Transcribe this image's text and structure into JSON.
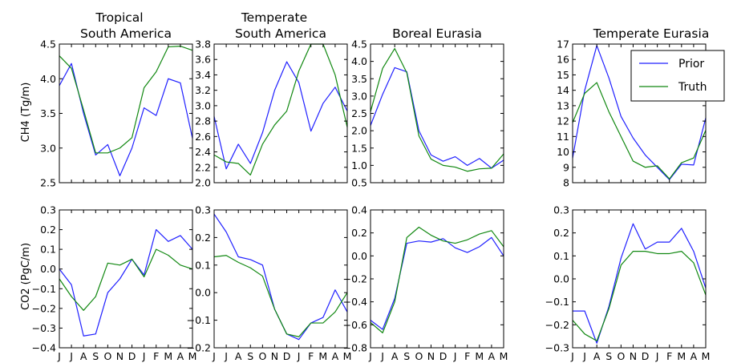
{
  "colors": {
    "prior": "#2020ff",
    "truth": "#118811"
  },
  "row_labels": [
    "CH4 (Tg/m)",
    "CO2 (PgC/m)"
  ],
  "legend": {
    "entries": [
      "Prior",
      "Truth"
    ],
    "placement": "upper-right of Temperate Eurasia CH4 panel"
  },
  "months": [
    "J",
    "J",
    "A",
    "S",
    "O",
    "N",
    "D",
    "J",
    "F",
    "M",
    "A",
    "M"
  ],
  "chart_data": [
    {
      "type": "line",
      "row": 0,
      "col": 0,
      "title": [
        "Tropical",
        "South America"
      ],
      "ylim": [
        2.5,
        4.5
      ],
      "yticks": [
        2.5,
        3.0,
        3.5,
        4.0,
        4.5
      ],
      "ytick_labels": [
        "2.5",
        "3.0",
        "3.5",
        "4.0",
        "4.5"
      ],
      "series": [
        {
          "name": "Prior",
          "values": [
            3.9,
            4.22,
            3.5,
            2.9,
            3.05,
            2.6,
            3.0,
            3.58,
            3.47,
            4.0,
            3.94,
            3.14
          ]
        },
        {
          "name": "Truth",
          "values": [
            4.33,
            4.15,
            3.55,
            2.93,
            2.93,
            3.0,
            3.15,
            3.87,
            4.1,
            4.46,
            4.47,
            4.41
          ]
        }
      ]
    },
    {
      "type": "line",
      "row": 0,
      "col": 1,
      "title": [
        "Temperate",
        "South America"
      ],
      "ylim": [
        2.0,
        3.8
      ],
      "yticks": [
        2.0,
        2.2,
        2.4,
        2.6,
        2.8,
        3.0,
        3.2,
        3.4,
        3.6,
        3.8
      ],
      "ytick_labels": [
        "2.0",
        "2.2",
        "2.4",
        "2.6",
        "2.8",
        "3.0",
        "3.2",
        "3.4",
        "3.6",
        "3.8"
      ],
      "series": [
        {
          "name": "Prior",
          "values": [
            2.86,
            2.18,
            2.5,
            2.25,
            2.65,
            3.2,
            3.57,
            3.3,
            2.67,
            3.03,
            3.24,
            2.93
          ]
        },
        {
          "name": "Truth",
          "values": [
            2.36,
            2.27,
            2.25,
            2.1,
            2.5,
            2.75,
            2.93,
            3.45,
            3.8,
            3.8,
            3.4,
            2.72
          ]
        }
      ]
    },
    {
      "type": "line",
      "row": 0,
      "col": 2,
      "title": [
        "Boreal Eurasia"
      ],
      "ylim": [
        0.5,
        4.5
      ],
      "yticks": [
        0.5,
        1.0,
        1.5,
        2.0,
        2.5,
        3.0,
        3.5,
        4.0,
        4.5
      ],
      "ytick_labels": [
        "0.5",
        "1.0",
        "1.5",
        "2.0",
        "2.5",
        "3.0",
        "3.5",
        "4.0",
        "4.5"
      ],
      "series": [
        {
          "name": "Prior",
          "values": [
            2.15,
            3.05,
            3.82,
            3.7,
            2.0,
            1.3,
            1.12,
            1.25,
            1.0,
            1.2,
            0.92,
            1.15
          ]
        },
        {
          "name": "Truth",
          "values": [
            2.55,
            3.8,
            4.37,
            3.67,
            1.85,
            1.18,
            1.0,
            0.95,
            0.83,
            0.9,
            0.92,
            1.33
          ]
        }
      ]
    },
    {
      "type": "line",
      "row": 0,
      "col": 3,
      "title": [
        "Temperate Eurasia"
      ],
      "ylim": [
        8,
        17
      ],
      "yticks": [
        8,
        9,
        10,
        11,
        12,
        13,
        14,
        15,
        16,
        17
      ],
      "ytick_labels": [
        "8",
        "9",
        "10",
        "11",
        "12",
        "13",
        "14",
        "15",
        "16",
        "17"
      ],
      "series": [
        {
          "name": "Prior",
          "values": [
            9.6,
            14.0,
            16.9,
            14.8,
            12.3,
            10.9,
            9.8,
            9.0,
            8.2,
            9.2,
            9.15,
            12.2
          ]
        },
        {
          "name": "Truth",
          "values": [
            11.9,
            13.8,
            14.5,
            12.6,
            11.0,
            9.4,
            9.0,
            9.1,
            8.25,
            9.3,
            9.6,
            11.4
          ]
        }
      ]
    },
    {
      "type": "line",
      "row": 1,
      "col": 0,
      "title": [],
      "ylim": [
        -0.4,
        0.3
      ],
      "yticks": [
        -0.4,
        -0.3,
        -0.2,
        -0.1,
        0.0,
        0.1,
        0.2,
        0.3
      ],
      "ytick_labels": [
        "−0.4",
        "−0.3",
        "−0.2",
        "−0.1",
        "0.0",
        "0.1",
        "0.2",
        "0.3"
      ],
      "series": [
        {
          "name": "Prior",
          "values": [
            0.0,
            -0.08,
            -0.34,
            -0.33,
            -0.12,
            -0.05,
            0.05,
            -0.03,
            0.2,
            0.14,
            0.17,
            0.1
          ]
        },
        {
          "name": "Truth",
          "values": [
            -0.05,
            -0.14,
            -0.21,
            -0.14,
            0.03,
            0.02,
            0.05,
            -0.04,
            0.1,
            0.07,
            0.02,
            0.0
          ]
        }
      ]
    },
    {
      "type": "line",
      "row": 1,
      "col": 1,
      "title": [],
      "ylim": [
        -0.2,
        0.3
      ],
      "yticks": [
        -0.2,
        -0.1,
        0.0,
        0.1,
        0.2,
        0.3
      ],
      "ytick_labels": [
        "−0.2",
        "−0.1",
        "0.0",
        "0.1",
        "0.2",
        "0.3"
      ],
      "series": [
        {
          "name": "Prior",
          "values": [
            0.285,
            0.22,
            0.13,
            0.12,
            0.1,
            -0.06,
            -0.15,
            -0.17,
            -0.11,
            -0.09,
            0.01,
            -0.07
          ]
        },
        {
          "name": "Truth",
          "values": [
            0.13,
            0.135,
            0.11,
            0.09,
            0.06,
            -0.06,
            -0.15,
            -0.16,
            -0.11,
            -0.11,
            -0.07,
            0.0
          ]
        }
      ]
    },
    {
      "type": "line",
      "row": 1,
      "col": 2,
      "title": [],
      "ylim": [
        -0.8,
        0.4
      ],
      "yticks": [
        -0.8,
        -0.6,
        -0.4,
        -0.2,
        0.0,
        0.2,
        0.4
      ],
      "ytick_labels": [
        "−0.8",
        "−0.6",
        "−0.4",
        "−0.2",
        "0.0",
        "0.2",
        "0.4"
      ],
      "series": [
        {
          "name": "Prior",
          "values": [
            -0.56,
            -0.64,
            -0.37,
            0.11,
            0.13,
            0.12,
            0.15,
            0.07,
            0.03,
            0.08,
            0.16,
            0.0
          ]
        },
        {
          "name": "Truth",
          "values": [
            -0.58,
            -0.67,
            -0.4,
            0.16,
            0.25,
            0.18,
            0.13,
            0.11,
            0.14,
            0.19,
            0.22,
            0.08
          ]
        }
      ]
    },
    {
      "type": "line",
      "row": 1,
      "col": 3,
      "title": [],
      "ylim": [
        -0.3,
        0.3
      ],
      "yticks": [
        -0.3,
        -0.2,
        -0.1,
        0.0,
        0.1,
        0.2,
        0.3
      ],
      "ytick_labels": [
        "−0.3",
        "−0.2",
        "−0.1",
        "0.0",
        "0.1",
        "0.2",
        "0.3"
      ],
      "series": [
        {
          "name": "Prior",
          "values": [
            -0.14,
            -0.14,
            -0.28,
            -0.12,
            0.09,
            0.24,
            0.13,
            0.16,
            0.16,
            0.22,
            0.12,
            -0.04
          ]
        },
        {
          "name": "Truth",
          "values": [
            -0.18,
            -0.24,
            -0.27,
            -0.13,
            0.06,
            0.12,
            0.12,
            0.11,
            0.11,
            0.12,
            0.07,
            -0.07
          ]
        }
      ]
    }
  ]
}
